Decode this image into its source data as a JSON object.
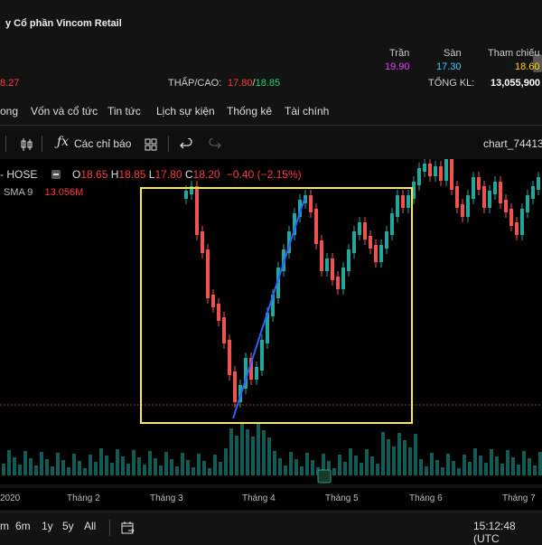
{
  "header": {
    "title": "y Cổ phần Vincom Retail",
    "price_fragment": "8.27",
    "low_high_label": "THẤP/CAO:",
    "low": "17.80",
    "high": "18.85",
    "ceiling_label": "Trần",
    "floor_label": "Sàn",
    "ref_label": "Tham chiếu",
    "ceiling": "19.90",
    "floor": "17.30",
    "ref": "18.60",
    "volume_label": "TỔNG KL:",
    "volume": "13,055,900"
  },
  "tabs": [
    "ong",
    "Vốn và cổ tức",
    "Tin tức",
    "Lịch sự kiện",
    "Thống kê",
    "Tài chính"
  ],
  "toolbar": {
    "indicators_label": "Các chỉ báo",
    "chart_name": "chart_74413"
  },
  "legend": {
    "symbol": "- HOSE",
    "o_label": "O",
    "o": "18.65",
    "h_label": "H",
    "h": "18.85",
    "l_label": "L",
    "l": "17.80",
    "c_label": "C",
    "c": "18.20",
    "change": "−0.40 (−2.15%)",
    "sma_label": "SMA 9",
    "sma_value": "13.056M"
  },
  "xaxis": [
    "2020",
    "Tháng 2",
    "Tháng 3",
    "Tháng 4",
    "Tháng 5",
    "Tháng 6",
    "Tháng 7"
  ],
  "bottom": {
    "ranges": [
      "m",
      "6m",
      "1y",
      "5y",
      "All"
    ],
    "time": "15:12:48 (UTC"
  },
  "colors": {
    "up": "#26a69a",
    "down": "#ef5350",
    "highlight_box": "#ffeb3b",
    "trendline": "#2962ff"
  }
}
